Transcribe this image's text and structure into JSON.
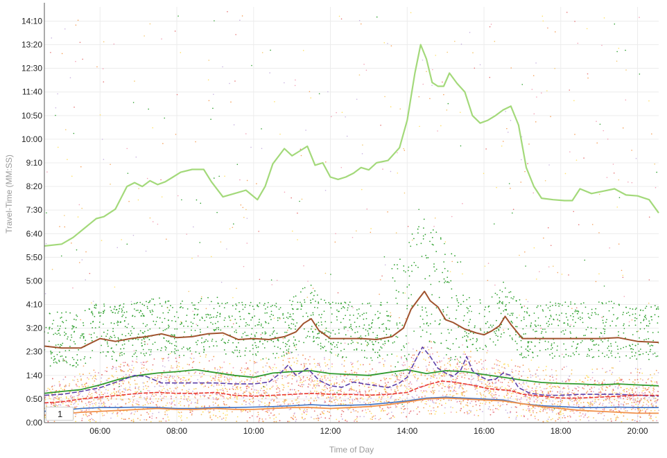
{
  "chart_data": {
    "type": "line",
    "xlabel": "Time of Day",
    "ylabel": "Travel-Time (MM:SS)",
    "xlim": [
      4.55,
      20.55
    ],
    "ylim": [
      0,
      880
    ],
    "x_ticks": [
      "06:00",
      "08:00",
      "10:00",
      "12:00",
      "14:00",
      "16:00",
      "18:00",
      "20:00"
    ],
    "x_tick_values": [
      6,
      8,
      10,
      12,
      14,
      16,
      18,
      20
    ],
    "y_ticks": [
      "0:00",
      "0:50",
      "1:40",
      "2:30",
      "3:20",
      "4:10",
      "5:00",
      "5:50",
      "6:40",
      "7:30",
      "8:20",
      "9:10",
      "10:00",
      "10:50",
      "11:40",
      "12:30",
      "13:20",
      "14:10"
    ],
    "y_tick_values": [
      0,
      50,
      100,
      150,
      200,
      250,
      300,
      350,
      400,
      450,
      500,
      550,
      600,
      650,
      700,
      750,
      800,
      850
    ],
    "grid": true,
    "legend_label": "1",
    "series": [
      {
        "color": "#a3d97a",
        "width": 2.2,
        "x": [
          4.55,
          5.0,
          5.3,
          5.6,
          5.9,
          6.1,
          6.4,
          6.7,
          6.9,
          7.1,
          7.3,
          7.5,
          7.7,
          7.9,
          8.1,
          8.4,
          8.7,
          8.9,
          9.2,
          9.5,
          9.8,
          10.1,
          10.3,
          10.5,
          10.8,
          11.0,
          11.2,
          11.4,
          11.6,
          11.8,
          12.0,
          12.2,
          12.4,
          12.6,
          12.8,
          13.0,
          13.2,
          13.5,
          13.8,
          14.0,
          14.2,
          14.35,
          14.5,
          14.65,
          14.8,
          14.95,
          15.1,
          15.3,
          15.5,
          15.7,
          15.9,
          16.1,
          16.3,
          16.5,
          16.7,
          16.9,
          17.1,
          17.3,
          17.5,
          17.8,
          18.1,
          18.3,
          18.5,
          18.8,
          19.1,
          19.4,
          19.7,
          20.0,
          20.3,
          20.55
        ],
        "y": [
          374,
          378,
          392,
          412,
          432,
          436,
          452,
          500,
          508,
          500,
          512,
          504,
          510,
          520,
          530,
          536,
          536,
          510,
          478,
          485,
          492,
          472,
          500,
          548,
          580,
          565,
          575,
          585,
          545,
          550,
          520,
          515,
          520,
          528,
          540,
          535,
          550,
          555,
          582,
          640,
          740,
          800,
          770,
          720,
          712,
          712,
          740,
          718,
          700,
          650,
          634,
          640,
          650,
          662,
          670,
          630,
          540,
          500,
          475,
          472,
          470,
          470,
          495,
          485,
          490,
          495,
          482,
          480,
          472,
          444
        ]
      },
      {
        "color": "#a0522d",
        "width": 2.0,
        "x": [
          4.55,
          5.0,
          5.5,
          6.0,
          6.4,
          6.8,
          7.2,
          7.6,
          8.0,
          8.4,
          8.8,
          9.2,
          9.6,
          10.0,
          10.4,
          10.8,
          11.1,
          11.3,
          11.5,
          11.7,
          12.0,
          12.4,
          12.8,
          13.2,
          13.6,
          13.9,
          14.1,
          14.3,
          14.45,
          14.6,
          14.8,
          15.0,
          15.2,
          15.5,
          15.8,
          16.0,
          16.2,
          16.4,
          16.55,
          16.7,
          17.0,
          17.5,
          18.0,
          18.5,
          19.0,
          19.5,
          20.0,
          20.55
        ],
        "y": [
          162,
          158,
          158,
          178,
          172,
          178,
          182,
          188,
          180,
          182,
          188,
          190,
          176,
          178,
          176,
          182,
          192,
          210,
          220,
          195,
          178,
          178,
          178,
          176,
          182,
          200,
          240,
          262,
          278,
          258,
          245,
          218,
          212,
          198,
          190,
          186,
          194,
          205,
          225,
          208,
          178,
          178,
          178,
          178,
          178,
          180,
          172,
          170
        ]
      },
      {
        "color": "#2e9a2e",
        "width": 1.8,
        "x": [
          4.55,
          5.0,
          5.5,
          6.0,
          6.5,
          7.0,
          7.5,
          8.0,
          8.5,
          9.0,
          9.5,
          10.0,
          10.5,
          11.0,
          11.5,
          12.0,
          12.5,
          13.0,
          13.5,
          14.0,
          14.5,
          15.0,
          15.5,
          16.0,
          16.5,
          17.0,
          17.5,
          18.0,
          18.5,
          19.0,
          19.5,
          20.0,
          20.55
        ],
        "y": [
          62,
          66,
          70,
          80,
          92,
          100,
          105,
          108,
          112,
          106,
          100,
          96,
          105,
          108,
          110,
          104,
          102,
          100,
          106,
          112,
          104,
          110,
          108,
          102,
          96,
          90,
          85,
          83,
          82,
          80,
          82,
          80,
          78
        ]
      },
      {
        "color": "#5b3fa8",
        "width": 1.6,
        "dash": "7,3",
        "x": [
          4.55,
          5.0,
          5.5,
          6.0,
          6.5,
          6.9,
          7.2,
          7.6,
          8.0,
          8.5,
          9.0,
          9.5,
          10.0,
          10.4,
          10.7,
          10.9,
          11.1,
          11.4,
          11.7,
          12.0,
          12.3,
          12.6,
          12.9,
          13.2,
          13.5,
          13.8,
          14.0,
          14.2,
          14.4,
          14.6,
          14.8,
          15.0,
          15.2,
          15.4,
          15.55,
          15.7,
          15.9,
          16.1,
          16.3,
          16.5,
          16.7,
          16.9,
          17.2,
          17.6,
          18.0,
          18.5,
          19.0,
          19.5,
          20.0,
          20.55
        ],
        "y": [
          58,
          60,
          66,
          74,
          88,
          100,
          98,
          84,
          84,
          84,
          84,
          82,
          82,
          86,
          105,
          122,
          100,
          115,
          90,
          78,
          75,
          86,
          82,
          78,
          74,
          84,
          96,
          130,
          160,
          140,
          115,
          105,
          98,
          112,
          140,
          110,
          98,
          90,
          92,
          105,
          100,
          74,
          62,
          58,
          58,
          60,
          60,
          60,
          58,
          56
        ]
      },
      {
        "color": "#e8352e",
        "width": 1.6,
        "dash": "6,2",
        "x": [
          4.55,
          5.0,
          5.5,
          6.0,
          6.5,
          7.0,
          7.5,
          8.0,
          8.5,
          9.0,
          9.5,
          10.0,
          10.5,
          11.0,
          11.5,
          12.0,
          12.5,
          13.0,
          13.5,
          14.0,
          14.3,
          14.6,
          14.9,
          15.2,
          15.5,
          15.8,
          16.1,
          16.4,
          16.7,
          17.0,
          17.5,
          18.0,
          18.5,
          19.0,
          19.5,
          20.0,
          20.55
        ],
        "y": [
          42,
          44,
          50,
          54,
          58,
          62,
          64,
          62,
          62,
          64,
          58,
          56,
          58,
          60,
          62,
          60,
          60,
          58,
          60,
          64,
          74,
          82,
          88,
          86,
          82,
          78,
          72,
          70,
          68,
          60,
          56,
          52,
          52,
          54,
          56,
          58,
          58
        ]
      },
      {
        "color": "#3d72c4",
        "width": 1.6,
        "x": [
          4.55,
          5.0,
          5.5,
          6.0,
          6.5,
          7.0,
          7.5,
          8.0,
          8.5,
          9.0,
          9.5,
          10.0,
          10.5,
          11.0,
          11.5,
          12.0,
          12.5,
          13.0,
          13.5,
          14.0,
          14.5,
          15.0,
          15.5,
          16.0,
          16.5,
          17.0,
          17.5,
          18.0,
          18.5,
          19.0,
          19.5,
          20.0,
          20.55
        ],
        "y": [
          24,
          26,
          30,
          32,
          32,
          33,
          32,
          30,
          30,
          32,
          32,
          33,
          34,
          36,
          38,
          36,
          37,
          38,
          42,
          46,
          52,
          54,
          52,
          50,
          48,
          40,
          36,
          34,
          32,
          32,
          33,
          32,
          32
        ]
      },
      {
        "color": "#f0904a",
        "width": 1.8,
        "x": [
          4.55,
          5.0,
          5.5,
          6.0,
          6.5,
          7.0,
          7.5,
          8.0,
          8.5,
          9.0,
          9.5,
          10.0,
          10.5,
          11.0,
          11.5,
          12.0,
          12.5,
          13.0,
          13.5,
          14.0,
          14.5,
          15.0,
          15.5,
          16.0,
          16.5,
          17.0,
          17.5,
          18.0,
          18.5,
          19.0,
          19.5,
          20.0,
          20.55
        ],
        "y": [
          16,
          18,
          22,
          24,
          26,
          28,
          30,
          28,
          28,
          30,
          28,
          28,
          30,
          32,
          32,
          30,
          32,
          34,
          38,
          44,
          50,
          52,
          50,
          48,
          46,
          40,
          34,
          30,
          26,
          24,
          22,
          20,
          20
        ]
      }
    ]
  }
}
